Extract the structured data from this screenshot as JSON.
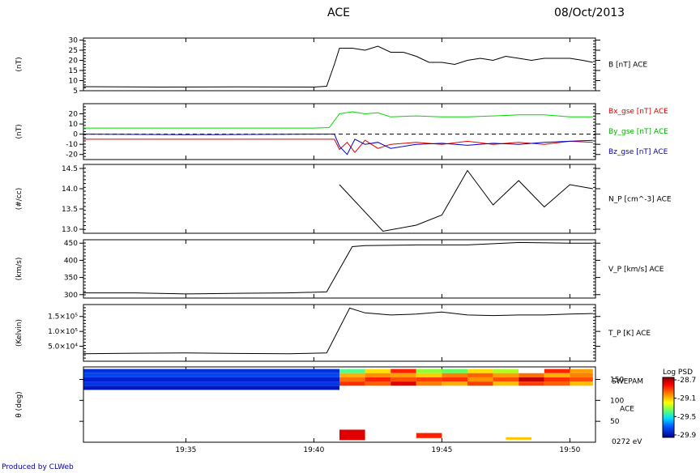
{
  "header": {
    "title": "ACE",
    "date": "08/Oct/2013"
  },
  "footer": {
    "credit": "Produced by CLWeb"
  },
  "colors": {
    "b_line": "#000000",
    "bx": "#e00000",
    "by": "#00d800",
    "bz": "#0000c0",
    "credit_text": "#0000a0",
    "zero_line": "#000000"
  },
  "time_axis": {
    "start": "19:31",
    "end": "19:51",
    "ticks": [
      "19:35",
      "19:40",
      "19:45",
      "19:50"
    ]
  },
  "chart_data": [
    {
      "type": "line",
      "id": "b",
      "ylabel": "(nT)",
      "series_label": "B [nT] ACE",
      "ylim": [
        5,
        31
      ],
      "yticks": [
        5,
        10,
        15,
        20,
        25,
        30
      ],
      "series": [
        {
          "name": "B [nT] ACE",
          "color": "#000000",
          "x": [
            31.0,
            34.0,
            37.0,
            40.0,
            40.5,
            40.8,
            41.0,
            41.5,
            42.0,
            42.5,
            43.0,
            43.5,
            44.0,
            44.5,
            45.0,
            45.5,
            46.0,
            46.5,
            47.0,
            47.5,
            48.0,
            48.5,
            49.0,
            49.5,
            50.0,
            50.5,
            50.9
          ],
          "y": [
            7,
            6.8,
            6.9,
            6.8,
            7.2,
            18,
            26,
            26,
            25,
            27,
            24,
            24,
            22,
            19,
            19,
            18,
            20,
            21,
            20,
            22,
            21,
            20,
            21,
            21,
            21,
            20,
            19
          ]
        }
      ]
    },
    {
      "type": "line",
      "id": "bcomp",
      "ylabel": "(nT)",
      "ylim": [
        -25,
        30
      ],
      "yticks": [
        -20,
        -10,
        0,
        10,
        20
      ],
      "zero_line": true,
      "series": [
        {
          "name": "Bx_gse [nT] ACE",
          "color": "#e00000",
          "x": [
            31.0,
            35.0,
            40.0,
            40.8,
            41.0,
            41.3,
            41.6,
            42.0,
            42.5,
            43.0,
            44.0,
            45.0,
            46.0,
            47.0,
            48.0,
            49.0,
            50.0,
            50.9
          ],
          "y": [
            -5,
            -5,
            -5,
            -5,
            -15,
            -8,
            -18,
            -6,
            -14,
            -10,
            -8,
            -10,
            -7,
            -10,
            -8,
            -10,
            -7,
            -8
          ]
        },
        {
          "name": "By_gse [nT] ACE",
          "color": "#00d800",
          "x": [
            31.0,
            35.0,
            40.0,
            40.6,
            41.0,
            41.5,
            42.0,
            42.5,
            43.0,
            44.0,
            45.0,
            46.0,
            47.0,
            48.0,
            49.0,
            50.0,
            50.9
          ],
          "y": [
            6,
            6,
            6,
            6.5,
            20,
            22,
            20,
            21,
            17,
            18,
            17,
            17,
            18,
            19,
            19,
            17,
            17
          ]
        },
        {
          "name": "Bz_gse [nT] ACE",
          "color": "#0000c0",
          "x": [
            31.0,
            35.0,
            40.0,
            40.8,
            41.0,
            41.3,
            41.6,
            42.0,
            42.5,
            43.0,
            44.0,
            45.0,
            46.0,
            47.0,
            48.0,
            49.0,
            50.0,
            50.9
          ],
          "y": [
            0,
            -0.5,
            0,
            0,
            -12,
            -20,
            -5,
            -10,
            -8,
            -14,
            -10,
            -9,
            -11,
            -9,
            -10,
            -8,
            -7,
            -6
          ]
        }
      ]
    },
    {
      "type": "line",
      "id": "np",
      "ylabel": "(#/cc)",
      "series_label": "N_P [cm^-3] ACE",
      "ylim": [
        12.9,
        14.6
      ],
      "yticks": [
        13.0,
        13.5,
        14.0,
        14.5
      ],
      "series": [
        {
          "name": "N_P [cm^-3] ACE",
          "color": "#000000",
          "x": [
            41.0,
            42.7,
            44.0,
            45.0,
            46.0,
            47.0,
            48.0,
            49.0,
            50.0,
            50.9
          ],
          "y": [
            14.1,
            12.95,
            13.1,
            13.35,
            14.45,
            13.6,
            14.2,
            13.55,
            14.1,
            14.0
          ]
        }
      ]
    },
    {
      "type": "line",
      "id": "vp",
      "ylabel": "(km/s)",
      "series_label": "V_P [km/s] ACE",
      "ylim": [
        290,
        460
      ],
      "yticks": [
        300,
        350,
        400,
        450
      ],
      "series": [
        {
          "name": "V_P [km/s] ACE",
          "color": "#000000",
          "x": [
            31.0,
            33.0,
            35.0,
            37.0,
            39.0,
            40.5,
            41.5,
            42.0,
            44.0,
            46.0,
            48.0,
            50.0,
            50.9
          ],
          "y": [
            305,
            305,
            302,
            304,
            305,
            308,
            440,
            443,
            445,
            445,
            452,
            450,
            450
          ]
        }
      ]
    },
    {
      "type": "line",
      "id": "tp",
      "ylabel": "(Kelvin)",
      "series_label": "T_P [K] ACE",
      "ylim": [
        0,
        190000
      ],
      "yticks": [
        50000,
        100000,
        150000
      ],
      "ytick_labels": [
        "5.0×10⁴",
        "1.0×10⁵",
        "1.5×10⁵"
      ],
      "series": [
        {
          "name": "T_P [K] ACE",
          "color": "#000000",
          "x": [
            31.0,
            33.0,
            35.0,
            37.0,
            39.0,
            40.5,
            41.4,
            42.0,
            43.0,
            44.0,
            45.0,
            46.0,
            47.0,
            48.0,
            49.0,
            50.0,
            50.9
          ],
          "y": [
            25000,
            27000,
            28000,
            26000,
            25000,
            28000,
            178000,
            162000,
            155000,
            158000,
            165000,
            155000,
            153000,
            155000,
            155000,
            158000,
            160000
          ]
        }
      ]
    },
    {
      "type": "heatmap",
      "id": "swepam",
      "ylabel": "θ (deg)",
      "series_label_1": "SWEPAM",
      "series_label_2": "ACE",
      "ylim": [
        0,
        180
      ],
      "yticks": [
        50,
        100,
        150
      ],
      "energy_label": "0272 eV",
      "colorbar": {
        "title": "Log PSD",
        "ticks": [
          "-28.7",
          "-29.1",
          "-29.5",
          "-29.9"
        ],
        "range": [
          -29.9,
          -28.7
        ]
      },
      "cells": [
        {
          "x0": 31.0,
          "x1": 41.0,
          "rows": [
            [
              175,
              165,
              "#0030e0"
            ],
            [
              165,
              155,
              "#0048f0"
            ],
            [
              155,
              145,
              "#0020d0"
            ],
            [
              145,
              135,
              "#0038e8"
            ],
            [
              135,
              125,
              "#0018c0"
            ]
          ]
        },
        {
          "x0": 41.0,
          "x1": 42.0,
          "rows": [
            [
              175,
              165,
              "#50ff90"
            ],
            [
              165,
              155,
              "#ffb000"
            ],
            [
              155,
              145,
              "#ff7000"
            ],
            [
              145,
              135,
              "#ff3000"
            ]
          ]
        },
        {
          "x0": 42.0,
          "x1": 43.0,
          "rows": [
            [
              175,
              165,
              "#ffe000"
            ],
            [
              165,
              155,
              "#ff9000"
            ],
            [
              155,
              145,
              "#ff2000"
            ],
            [
              145,
              135,
              "#ff6000"
            ]
          ]
        },
        {
          "x0": 43.0,
          "x1": 44.0,
          "rows": [
            [
              175,
              165,
              "#ff2000"
            ],
            [
              165,
              155,
              "#ffa000"
            ],
            [
              155,
              145,
              "#ff5000"
            ],
            [
              145,
              135,
              "#e00000"
            ]
          ]
        },
        {
          "x0": 44.0,
          "x1": 45.0,
          "rows": [
            [
              175,
              165,
              "#90ff30"
            ],
            [
              165,
              155,
              "#ffd000"
            ],
            [
              155,
              145,
              "#ff4000"
            ],
            [
              145,
              135,
              "#ff8000"
            ]
          ]
        },
        {
          "x0": 45.0,
          "x1": 46.0,
          "rows": [
            [
              175,
              165,
              "#60ff60"
            ],
            [
              165,
              155,
              "#ff8000"
            ],
            [
              155,
              145,
              "#ff3000"
            ],
            [
              145,
              135,
              "#ffb000"
            ]
          ]
        },
        {
          "x0": 46.0,
          "x1": 47.0,
          "rows": [
            [
              175,
              165,
              "#ffe000"
            ],
            [
              165,
              155,
              "#ff6000"
            ],
            [
              155,
              145,
              "#ff9000"
            ],
            [
              145,
              135,
              "#ff4000"
            ]
          ]
        },
        {
          "x0": 47.0,
          "x1": 48.0,
          "rows": [
            [
              175,
              165,
              "#b0ff20"
            ],
            [
              165,
              155,
              "#ffa000"
            ],
            [
              155,
              145,
              "#ff5000"
            ],
            [
              145,
              135,
              "#ffc000"
            ]
          ]
        },
        {
          "x0": 48.0,
          "x1": 49.0,
          "rows": [
            [
              175,
              165,
              "#ffffff"
            ],
            [
              165,
              155,
              "#ff7000"
            ],
            [
              155,
              145,
              "#c00000"
            ],
            [
              145,
              135,
              "#ff4000"
            ]
          ]
        },
        {
          "x0": 49.0,
          "x1": 50.0,
          "rows": [
            [
              175,
              165,
              "#ff2000"
            ],
            [
              165,
              155,
              "#ffb000"
            ],
            [
              155,
              145,
              "#ff3000"
            ],
            [
              145,
              135,
              "#ff6000"
            ]
          ]
        },
        {
          "x0": 50.0,
          "x1": 50.9,
          "rows": [
            [
              175,
              165,
              "#ffa000"
            ],
            [
              165,
              155,
              "#ff8000"
            ],
            [
              155,
              145,
              "#ff5000"
            ],
            [
              145,
              135,
              "#ffc000"
            ]
          ]
        },
        {
          "x0": 41.0,
          "x1": 42.0,
          "rows": [
            [
              30,
              5,
              "#e00000"
            ]
          ]
        },
        {
          "x0": 44.0,
          "x1": 45.0,
          "rows": [
            [
              22,
              10,
              "#ff2000"
            ]
          ]
        },
        {
          "x0": 47.5,
          "x1": 48.5,
          "rows": [
            [
              12,
              6,
              "#ffc800"
            ]
          ]
        }
      ]
    }
  ]
}
